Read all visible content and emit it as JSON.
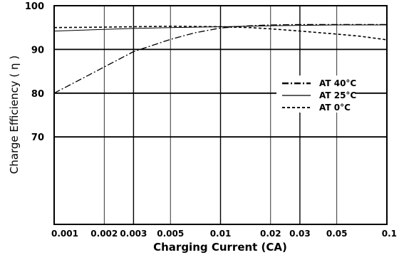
{
  "chart_data": {
    "type": "line",
    "xlabel": "Charging Current (CA)",
    "ylabel": "Charge Efficiency ( η )",
    "x_scale": "log",
    "xlim": [
      0.001,
      0.1
    ],
    "ylim": [
      50,
      100
    ],
    "grid": true,
    "legend_position": "right",
    "x_ticks": [
      {
        "value": 0.001,
        "label": "0.001"
      },
      {
        "value": 0.002,
        "label": "0.002"
      },
      {
        "value": 0.003,
        "label": "0.003"
      },
      {
        "value": 0.005,
        "label": "0.005"
      },
      {
        "value": 0.01,
        "label": "0.01"
      },
      {
        "value": 0.02,
        "label": "0.02"
      },
      {
        "value": 0.03,
        "label": "0.03"
      },
      {
        "value": 0.05,
        "label": "0.05"
      },
      {
        "value": 0.1,
        "label": "0.1"
      }
    ],
    "y_ticks": [
      {
        "value": 100,
        "label": "100"
      },
      {
        "value": 90,
        "label": "90"
      },
      {
        "value": 80,
        "label": "80"
      },
      {
        "value": 70,
        "label": "70"
      }
    ],
    "series": [
      {
        "name": "AT 40°C",
        "style": "dash-dot",
        "x": [
          0.001,
          0.0015,
          0.002,
          0.003,
          0.005,
          0.007,
          0.01,
          0.015,
          0.02,
          0.03,
          0.05,
          0.1
        ],
        "y": [
          80,
          83.5,
          86,
          89.5,
          92.3,
          93.8,
          94.9,
          95.4,
          95.6,
          95.7,
          95.7,
          95.7
        ]
      },
      {
        "name": "AT 25°C",
        "style": "solid",
        "x": [
          0.001,
          0.002,
          0.003,
          0.005,
          0.01,
          0.02,
          0.03,
          0.05,
          0.1
        ],
        "y": [
          94.2,
          94.6,
          94.8,
          95.0,
          95.2,
          95.4,
          95.5,
          95.6,
          95.6
        ]
      },
      {
        "name": "AT 0°C",
        "style": "dashed",
        "x": [
          0.001,
          0.002,
          0.003,
          0.005,
          0.01,
          0.015,
          0.02,
          0.03,
          0.05,
          0.07,
          0.1
        ],
        "y": [
          95.0,
          95.1,
          95.2,
          95.3,
          95.2,
          95.0,
          94.7,
          94.2,
          93.5,
          93.0,
          92.2
        ]
      }
    ]
  }
}
